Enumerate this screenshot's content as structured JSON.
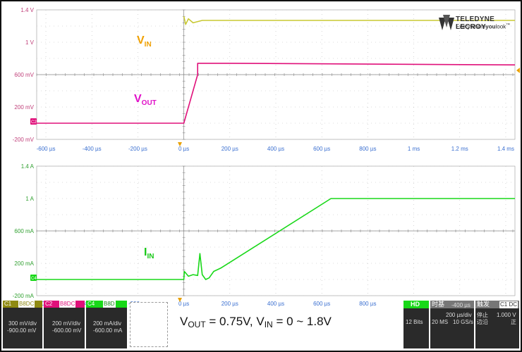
{
  "brand": {
    "name": "TELEDYNE LECROY",
    "tagline_prefix": "Everywhere",
    "tagline_bold": "you",
    "tagline_suffix": "look",
    "tm": "™"
  },
  "colors": {
    "ch1": "#c8c832",
    "ch2": "#e0107a",
    "ch4": "#18d818",
    "grid": "#9a9a9a",
    "axis_text": "#3a6fd0",
    "vin_label": "#f0a000",
    "vout_label": "#e010c8",
    "iin_label": "#18c818"
  },
  "labels": {
    "vin_main": "V",
    "vin_sub": "IN",
    "vout_main": "V",
    "vout_sub": "OUT",
    "iin_main": "I",
    "iin_sub": "IN"
  },
  "caption": {
    "p1": "V",
    "p1sub": "OUT",
    "p2": " = 0.75V, V",
    "p2sub": "IN",
    "p3": " = 0 ~ 1.8V"
  },
  "top_y_ticks": [
    "1.4 V",
    "1 V",
    "600 mV",
    "200 mV",
    "-200 mV"
  ],
  "bottom_y_ticks": [
    "1.4 A",
    "1 A",
    "600 mA",
    "200 mA",
    "-200 mA"
  ],
  "x_ticks": [
    "-600 µs",
    "-400 µs",
    "-200 µs",
    "0 µs",
    "200 µs",
    "400 µs",
    "600 µs",
    "800 µs",
    "1 ms",
    "1.2 ms",
    "1.4 ms"
  ],
  "ch_markers": {
    "c2": "C2",
    "c4": "C4"
  },
  "channels": [
    {
      "id": "C1",
      "tags": "B8DC",
      "scale": "300 mV/div",
      "offset": "-900.00 mV"
    },
    {
      "id": "C2",
      "tags": "B8DC",
      "scale": "200 mV/div",
      "offset": "-600.00 mV"
    },
    {
      "id": "C4",
      "tags": "B8D",
      "scale": "200 mA/div",
      "offset": "-600.00 mA"
    }
  ],
  "acq": {
    "hd": "HD",
    "bits": "12 Bits",
    "timebase_label": "时基",
    "timebase_delay": "-400 µs",
    "time_div": "200 µs/div",
    "samples": "20 MS",
    "rate": "10 GS/s",
    "trigger_label": "触发",
    "trigger_flags": "C1 DC",
    "trig_state": "停止",
    "trig_level": "1.000 V",
    "trig_mode": "边沿",
    "trig_slope": "正"
  },
  "chart_data": [
    {
      "type": "line",
      "title": "",
      "xlabel": "",
      "ylabel": "",
      "xlim_us": [
        -640,
        1440
      ],
      "ylim_V": [
        -0.2,
        1.4
      ],
      "grid": true,
      "series": [
        {
          "name": "VIN",
          "x_us": [
            -640,
            0,
            0,
            8,
            20,
            40,
            80,
            200,
            1440
          ],
          "y": [
            null,
            null,
            1.32,
            1.22,
            1.29,
            1.24,
            1.27,
            1.27,
            1.27
          ]
        },
        {
          "name": "VOUT",
          "x_us": [
            -640,
            0,
            60,
            60,
            80,
            200,
            1440
          ],
          "y": [
            0.0,
            0.0,
            0.6,
            0.74,
            0.74,
            0.74,
            0.72
          ]
        }
      ]
    },
    {
      "type": "line",
      "title": "",
      "xlabel": "",
      "ylabel": "",
      "xlim_us": [
        -640,
        1440
      ],
      "ylim_A": [
        -0.2,
        1.4
      ],
      "grid": true,
      "series": [
        {
          "name": "IIN",
          "x_us": [
            -640,
            0,
            2,
            20,
            40,
            60,
            70,
            80,
            95,
            110,
            130,
            160,
            640,
            1440
          ],
          "y": [
            0.0,
            0.0,
            0.1,
            0.04,
            0.06,
            0.05,
            0.32,
            0.06,
            0.0,
            0.02,
            0.1,
            0.14,
            1.0,
            1.0
          ]
        }
      ]
    }
  ]
}
